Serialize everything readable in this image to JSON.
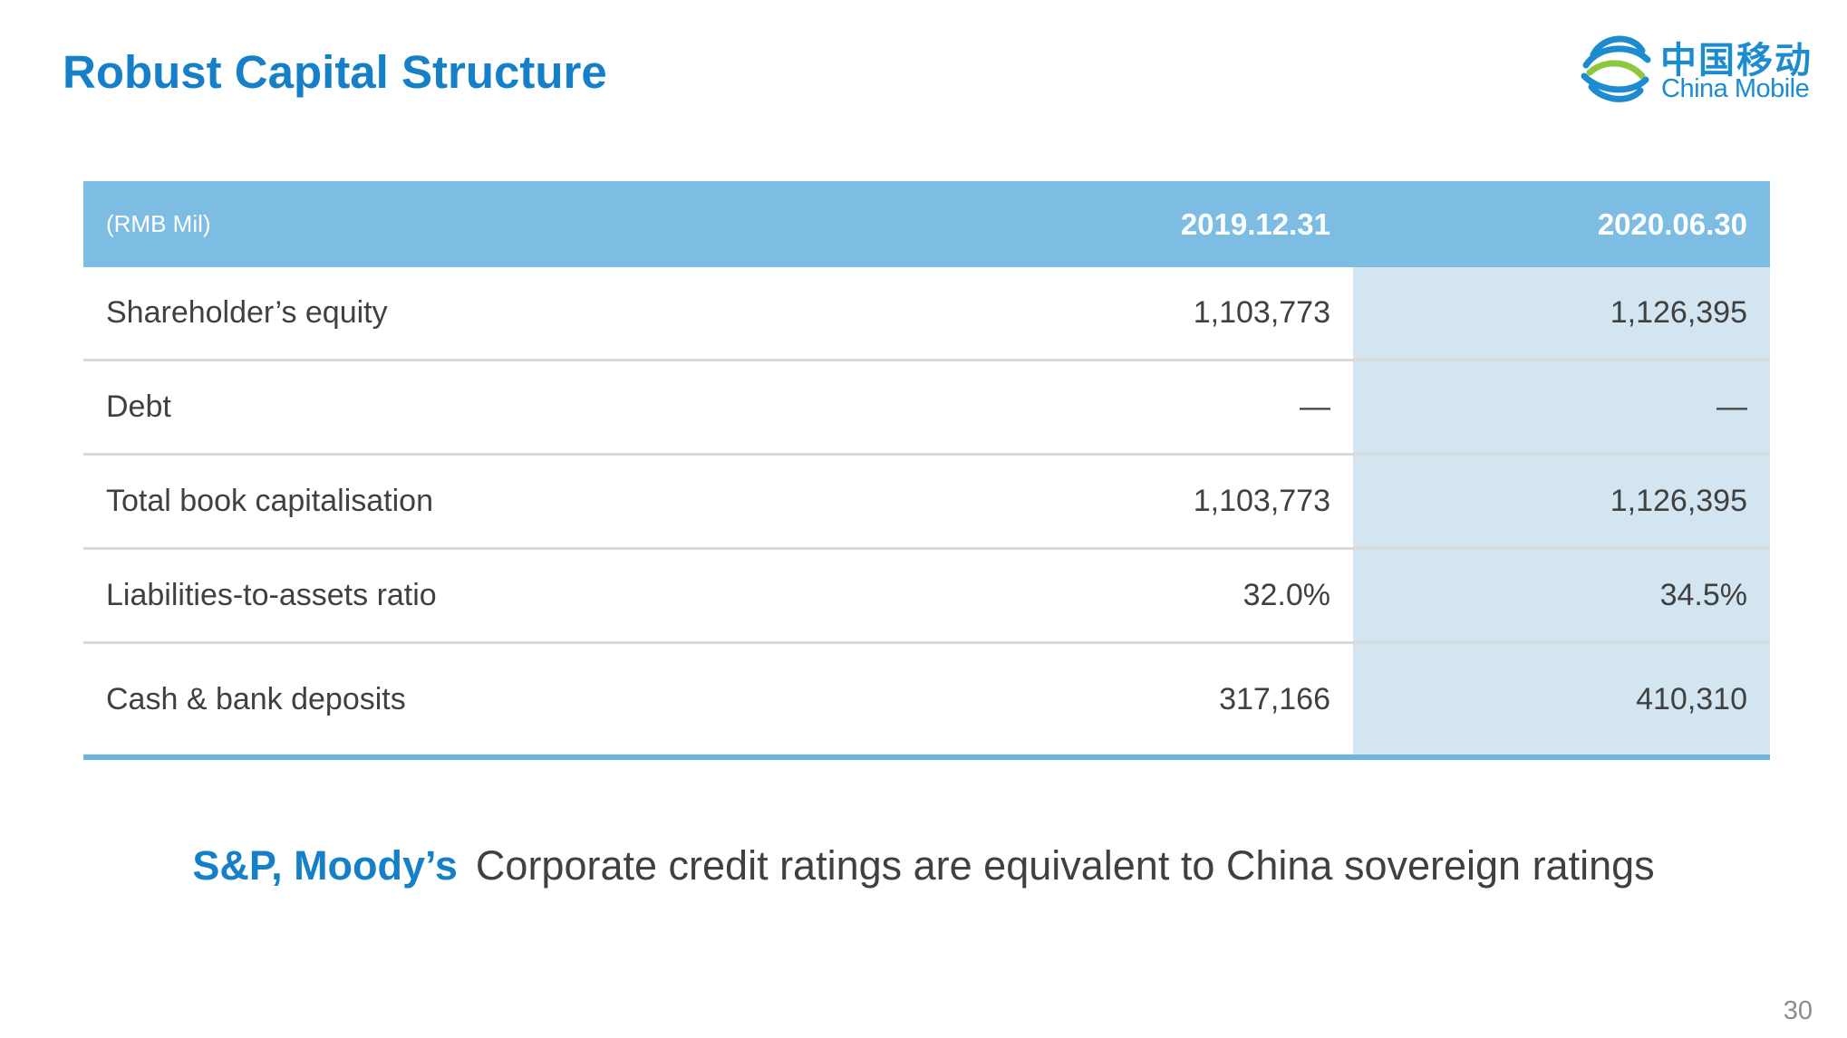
{
  "header": {
    "title": "Robust Capital Structure",
    "logo": {
      "chinese": "中国移动",
      "english": "China Mobile",
      "icon": "china-mobile-logo-icon",
      "colors": {
        "blue": "#1D8BCF",
        "green": "#8DC63F"
      }
    }
  },
  "table": {
    "unit": "(RMB Mil)",
    "columns": [
      "2019.12.31",
      "2020.06.30"
    ],
    "rows": [
      {
        "label": "Shareholder’s equity",
        "v2019": "1,103,773",
        "v2020": "1,126,395"
      },
      {
        "label": "Debt",
        "v2019": "—",
        "v2020": "—"
      },
      {
        "label": "Total book capitalisation",
        "v2019": "1,103,773",
        "v2020": "1,126,395"
      },
      {
        "label": "Liabilities-to-assets ratio",
        "v2019": "32.0%",
        "v2020": "34.5%"
      },
      {
        "label": "Cash & bank deposits",
        "v2019": "317,166",
        "v2020": "410,310"
      }
    ],
    "colors": {
      "header": "#7EBDE3",
      "highlight_column": "#D3E5F1",
      "bottom_rule": "#6DB3E0"
    }
  },
  "note": {
    "emphasis": "S&P, Moody’s",
    "text": "Corporate credit ratings are equivalent to China sovereign ratings"
  },
  "page_number": "30",
  "colors": {
    "accent": "#1580C8",
    "body_text": "#404040"
  }
}
